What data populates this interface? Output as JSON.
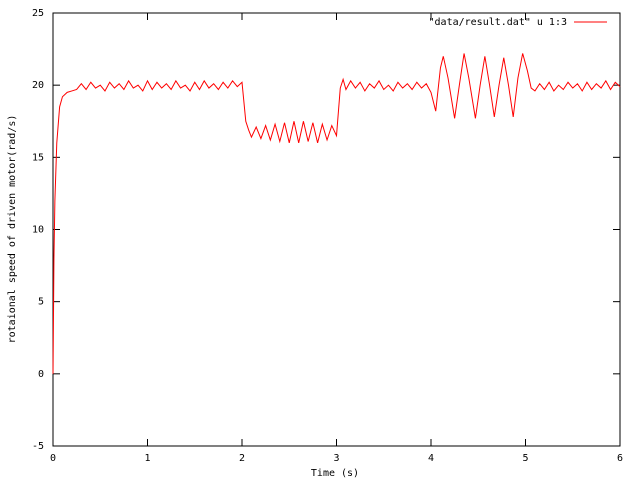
{
  "chart_data": {
    "type": "line",
    "xlabel": "Time (s)",
    "ylabel": "rotaional speed of driven motor(rad/s)",
    "xlim": [
      0,
      6
    ],
    "ylim": [
      -5,
      25
    ],
    "xticks": [
      0,
      1,
      2,
      3,
      4,
      5,
      6
    ],
    "yticks": [
      -5,
      0,
      5,
      10,
      15,
      20,
      25
    ],
    "grid": false,
    "legend": "top-right",
    "series": [
      {
        "name": "\"data/result.dat\" u 1:3",
        "color": "#ff0000",
        "x": [
          0,
          0.01,
          0.02,
          0.04,
          0.07,
          0.1,
          0.15,
          0.2,
          0.25,
          0.3,
          0.35,
          0.4,
          0.45,
          0.5,
          0.55,
          0.6,
          0.65,
          0.7,
          0.75,
          0.8,
          0.85,
          0.9,
          0.95,
          1.0,
          1.05,
          1.1,
          1.15,
          1.2,
          1.25,
          1.3,
          1.35,
          1.4,
          1.45,
          1.5,
          1.55,
          1.6,
          1.65,
          1.7,
          1.75,
          1.8,
          1.85,
          1.9,
          1.95,
          2.0,
          2.04,
          2.07,
          2.1,
          2.15,
          2.2,
          2.25,
          2.3,
          2.35,
          2.4,
          2.45,
          2.5,
          2.55,
          2.6,
          2.65,
          2.7,
          2.75,
          2.8,
          2.85,
          2.9,
          2.95,
          3.0,
          3.04,
          3.07,
          3.1,
          3.15,
          3.2,
          3.25,
          3.3,
          3.35,
          3.4,
          3.45,
          3.5,
          3.55,
          3.6,
          3.65,
          3.7,
          3.75,
          3.8,
          3.85,
          3.9,
          3.95,
          4.0,
          4.05,
          4.1,
          4.13,
          4.18,
          4.25,
          4.3,
          4.35,
          4.4,
          4.47,
          4.52,
          4.57,
          4.62,
          4.67,
          4.72,
          4.77,
          4.82,
          4.87,
          4.92,
          4.97,
          5.02,
          5.06,
          5.1,
          5.15,
          5.2,
          5.25,
          5.3,
          5.35,
          5.4,
          5.45,
          5.5,
          5.55,
          5.6,
          5.65,
          5.7,
          5.75,
          5.8,
          5.85,
          5.9,
          5.95,
          6.0
        ],
        "values": [
          0,
          8,
          12,
          16,
          18.5,
          19.2,
          19.5,
          19.6,
          19.7,
          20.1,
          19.7,
          20.2,
          19.8,
          20.0,
          19.6,
          20.2,
          19.8,
          20.1,
          19.7,
          20.3,
          19.8,
          20.0,
          19.6,
          20.3,
          19.7,
          20.2,
          19.8,
          20.1,
          19.7,
          20.3,
          19.8,
          20.0,
          19.6,
          20.2,
          19.7,
          20.3,
          19.8,
          20.1,
          19.7,
          20.2,
          19.8,
          20.3,
          19.9,
          20.2,
          17.5,
          16.9,
          16.4,
          17.1,
          16.3,
          17.2,
          16.2,
          17.3,
          16.1,
          17.4,
          16.0,
          17.5,
          16.0,
          17.5,
          16.1,
          17.4,
          16.0,
          17.3,
          16.2,
          17.2,
          16.5,
          19.8,
          20.4,
          19.7,
          20.3,
          19.8,
          20.2,
          19.6,
          20.1,
          19.8,
          20.3,
          19.7,
          20.0,
          19.6,
          20.2,
          19.8,
          20.1,
          19.7,
          20.2,
          19.8,
          20.1,
          19.5,
          18.2,
          21.2,
          22,
          20.5,
          17.7,
          20,
          22.2,
          20.5,
          17.7,
          20,
          22,
          20,
          17.8,
          20,
          21.9,
          20,
          17.8,
          20.5,
          22.2,
          21,
          19.8,
          19.6,
          20.1,
          19.7,
          20.2,
          19.6,
          20.0,
          19.7,
          20.2,
          19.8,
          20.1,
          19.6,
          20.2,
          19.7,
          20.1,
          19.8,
          20.3,
          19.7,
          20.2,
          19.9
        ]
      }
    ]
  }
}
